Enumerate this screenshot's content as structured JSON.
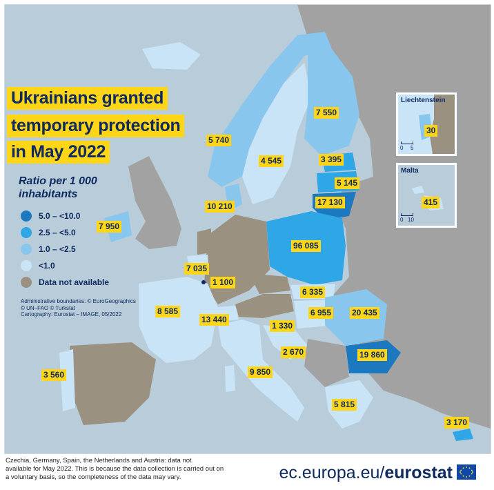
{
  "title_lines": [
    "Ukrainians granted",
    "temporary protection",
    "in May 2022"
  ],
  "legend": {
    "title": "Ratio per 1 000 inhabitants",
    "items": [
      {
        "label": "5.0 – <10.0",
        "color": "#1c78bf"
      },
      {
        "label": "2.5 – <5.0",
        "color": "#2fa6e6"
      },
      {
        "label": "1.0 – <2.5",
        "color": "#88c6ee"
      },
      {
        "label": "<1.0",
        "color": "#c8e4f6"
      },
      {
        "label": "Data not available",
        "color": "#9a9181"
      }
    ]
  },
  "credits": [
    "Administrative boundaries: © EuroGeographics",
    "© UN–FAO © Turkstat",
    "Cartography: Eurostat – IMAGE, 05/2022"
  ],
  "values": {
    "norway": "5 740",
    "sweden": "4 545",
    "finland": "7 550",
    "estonia": "3 395",
    "latvia": "5 145",
    "lithuania": "17 130",
    "denmark": "10 210",
    "ireland": "7 950",
    "poland": "96 085",
    "belgium": "7 035",
    "luxembourg": "1 100",
    "france": "8 585",
    "switzerland": "13 440",
    "slovakia": "6 335",
    "hungary": "6 955",
    "romania": "20 435",
    "slovenia": "1 330",
    "croatia": "2 670",
    "bulgaria": "19 860",
    "italy": "9 850",
    "portugal": "3 560",
    "greece": "5 815",
    "cyprus": "3 170",
    "liechtenstein": "30",
    "malta": "415"
  },
  "insets": {
    "liechtenstein": {
      "title": "Liechtenstein",
      "scale": [
        "0",
        "5"
      ]
    },
    "malta": {
      "title": "Malta",
      "scale": [
        "0",
        "10"
      ]
    }
  },
  "footnote": [
    "Czechia, Germany, Spain, the Netherlands and Austria: data not",
    "available for May 2022. This is because the data collection is carried out on",
    "a voluntary basis, so the completeness of the data may vary."
  ],
  "brand": {
    "url": "ec.europa.eu/",
    "name": "eurostat"
  },
  "colors": {
    "sea": "#b8cdd9",
    "non_eu": "#a2a2a2",
    "class_5_10": "#1c78bf",
    "class_2_5_5": "#2fa6e6",
    "class_1_2_5": "#88c6ee",
    "class_lt_1": "#c8e4f6",
    "not_available": "#9a9181",
    "label_bg": "#ffd617",
    "title_text": "#0e2a60"
  }
}
